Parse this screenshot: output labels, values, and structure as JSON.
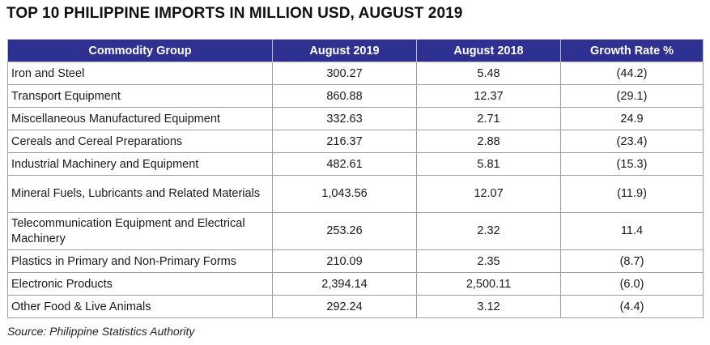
{
  "title": "TOP 10 PHILIPPINE IMPORTS IN MILLION USD, AUGUST 2019",
  "table": {
    "headers": [
      "Commodity Group",
      "August 2019",
      "August 2018",
      "Growth Rate %"
    ],
    "rows": [
      {
        "commodity": "Iron and Steel",
        "aug_2019": "300.27",
        "aug_2018": "5.48",
        "growth": "(44.2)"
      },
      {
        "commodity": "Transport Equipment",
        "aug_2019": "860.88",
        "aug_2018": "12.37",
        "growth": "(29.1)"
      },
      {
        "commodity": "Miscellaneous Manufactured Equipment",
        "aug_2019": "332.63",
        "aug_2018": "2.71",
        "growth": "24.9"
      },
      {
        "commodity": "Cereals and Cereal Preparations",
        "aug_2019": "216.37",
        "aug_2018": "2.88",
        "growth": "(23.4)"
      },
      {
        "commodity": "Industrial Machinery and Equipment",
        "aug_2019": "482.61",
        "aug_2018": "5.81",
        "growth": "(15.3)"
      },
      {
        "commodity": "Mineral Fuels, Lubricants and Related Materials",
        "aug_2019": "1,043.56",
        "aug_2018": "12.07",
        "growth": "(11.9)"
      },
      {
        "commodity": "Telecommunication Equipment and Electrical Machinery",
        "aug_2019": "253.26",
        "aug_2018": "2.32",
        "growth": "11.4"
      },
      {
        "commodity": "Plastics in Primary and Non-Primary Forms",
        "aug_2019": "210.09",
        "aug_2018": "2.35",
        "growth": "(8.7)"
      },
      {
        "commodity": "Electronic Products",
        "aug_2019": "2,394.14",
        "aug_2018": "2,500.11",
        "growth": "(6.0)"
      },
      {
        "commodity": "Other Food & Live Animals",
        "aug_2019": "292.24",
        "aug_2018": "3.12",
        "growth": "(4.4)"
      }
    ]
  },
  "source": "Source: Philippine Statistics Authority",
  "colors": {
    "header_background": "#2e3191",
    "header_text": "#ffffff",
    "cell_border": "#9e9e9e"
  }
}
